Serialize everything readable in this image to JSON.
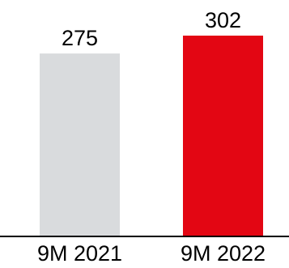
{
  "chart_data": {
    "type": "bar",
    "title": "",
    "xlabel": "",
    "ylabel": "",
    "categories": [
      "9M 2021",
      "9M 2022"
    ],
    "values": [
      275,
      302
    ],
    "colors": [
      "#d9dbdd",
      "#e30613"
    ],
    "axis_color": "#000000",
    "data_labels": true,
    "grid": false,
    "legend": "none",
    "ylim": [
      0,
      302
    ]
  }
}
